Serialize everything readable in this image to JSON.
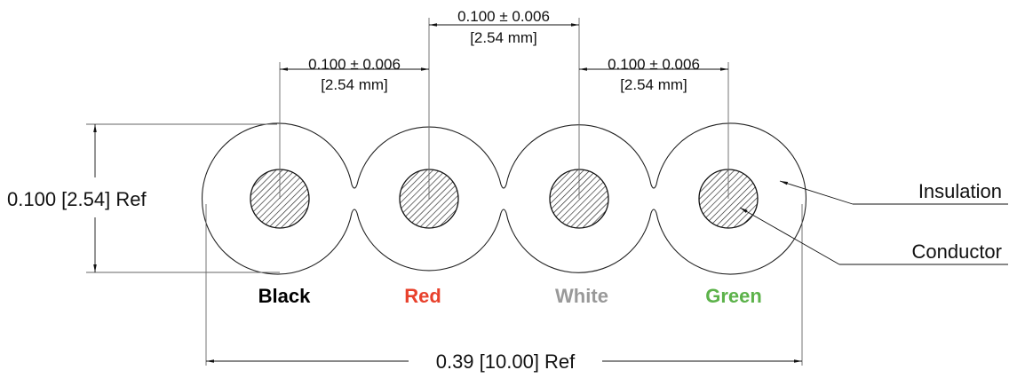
{
  "dimensions": {
    "pitch_left": {
      "inch": "0.100 ± 0.006",
      "mm": "[2.54 mm]"
    },
    "pitch_center": {
      "inch": "0.100 ± 0.006",
      "mm": "[2.54 mm]"
    },
    "pitch_right": {
      "inch": "0.100 ± 0.006",
      "mm": "[2.54 mm]"
    },
    "height": "0.100 [2.54] Ref",
    "width": "0.39 [10.00] Ref"
  },
  "callouts": {
    "insulation": "Insulation",
    "conductor": "Conductor"
  },
  "wires": [
    {
      "label": "Black",
      "color": "#000000"
    },
    {
      "label": "Red",
      "color": "#e8412c"
    },
    {
      "label": "White",
      "color": "#999999"
    },
    {
      "label": "Green",
      "color": "#5cb24a"
    }
  ]
}
